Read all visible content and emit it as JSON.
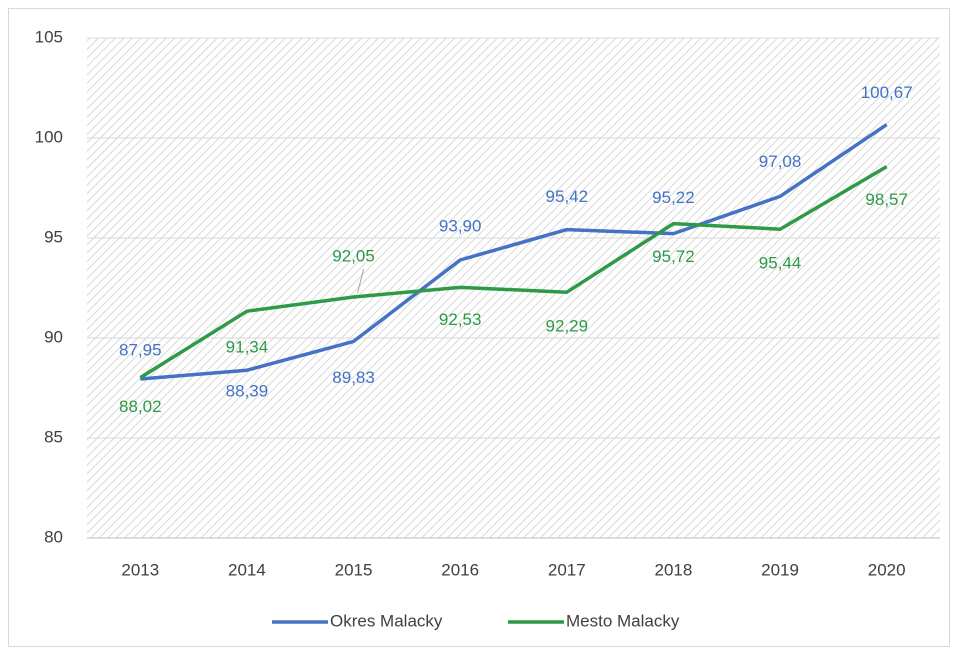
{
  "chart_data": {
    "type": "line",
    "categories": [
      "2013",
      "2014",
      "2015",
      "2016",
      "2017",
      "2018",
      "2019",
      "2020"
    ],
    "series": [
      {
        "name": "Okres Malacky",
        "color": "#4472c4",
        "values": [
          87.95,
          88.39,
          89.83,
          93.9,
          95.42,
          95.22,
          97.08,
          100.67
        ],
        "value_labels": [
          "87,95",
          "88,39",
          "89,83",
          "93,90",
          "95,42",
          "95,22",
          "97,08",
          "100,67"
        ]
      },
      {
        "name": "Mesto Malacky",
        "color": "#2e9a48",
        "values": [
          88.02,
          91.34,
          92.05,
          92.53,
          92.29,
          95.72,
          95.44,
          98.57
        ],
        "value_labels": [
          "88,02",
          "91,34",
          "92,05",
          "92,53",
          "92,29",
          "95,72",
          "95,44",
          "98,57"
        ]
      }
    ],
    "ylim": [
      80,
      105
    ],
    "yticks": [
      80,
      85,
      90,
      95,
      100,
      105
    ],
    "grid": true,
    "legend": "bottom"
  }
}
